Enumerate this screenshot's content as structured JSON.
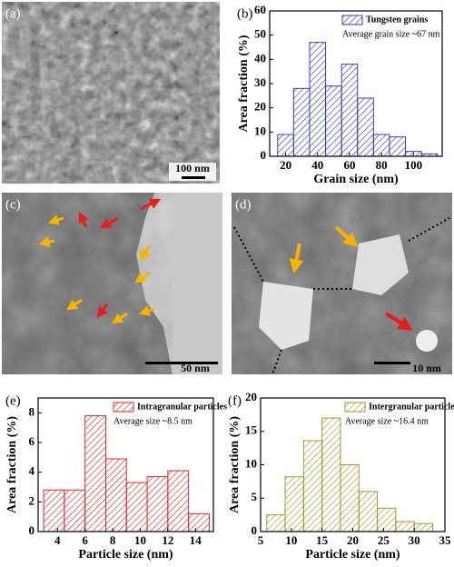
{
  "images": [
    {
      "label": "(a)",
      "scale_bar": "100 nm"
    },
    {
      "label": "(c)",
      "scale_bar": "50 nm"
    },
    {
      "label": "(d)",
      "scale_bar": "10 nm"
    }
  ],
  "chart_data": [
    {
      "type": "histogram",
      "label": "(b)",
      "xlabel": "Grain size (nm)",
      "ylabel": "Area fraction (%)",
      "annotation": "Average grain size ~67 nm",
      "bins": [
        15,
        25,
        35,
        45,
        55,
        65,
        75,
        85,
        95,
        105,
        115
      ],
      "series": [
        {
          "name": "Tungsten grains",
          "color": "#3a3acc",
          "values": [
            9,
            28,
            47,
            29,
            38,
            24,
            9,
            8,
            2,
            1
          ]
        }
      ],
      "xlim": [
        10,
        118
      ],
      "xticks": [
        20,
        40,
        60,
        80,
        100
      ],
      "ylim": [
        0,
        60
      ],
      "yticks": [
        0,
        10,
        20,
        30,
        40,
        50,
        60
      ]
    },
    {
      "type": "histogram",
      "label": "(e)",
      "xlabel": "Particle size (nm)",
      "ylabel": "Area fraction (%)",
      "annotation": "Average size ~8.5 nm",
      "bins": [
        3,
        4.5,
        6,
        7.5,
        9,
        10.5,
        12,
        13.5,
        15
      ],
      "series": [
        {
          "name": "Intragranular particles",
          "color": "#dd2a2a",
          "values": [
            2.8,
            2.8,
            7.8,
            4.9,
            3.3,
            3.7,
            4.1,
            1.2
          ]
        }
      ],
      "xlim": [
        2.6,
        15.3
      ],
      "xticks": [
        4,
        6,
        8,
        10,
        12,
        14
      ],
      "ylim": [
        0,
        9
      ],
      "yticks": [
        0,
        2,
        4,
        6,
        8
      ]
    },
    {
      "type": "histogram",
      "label": "(f)",
      "xlabel": "Particle size (nm)",
      "ylabel": "Area fraction (%)",
      "annotation": "Average size ~16.4 nm",
      "bins": [
        6,
        9,
        12,
        15,
        18,
        21,
        24,
        27,
        30,
        33
      ],
      "series": [
        {
          "name": "Intergranular particles",
          "color": "#9a9a30",
          "values": [
            2.5,
            8.2,
            13.6,
            17,
            10,
            6,
            3.5,
            1.5,
            1.2
          ]
        }
      ],
      "xlim": [
        5,
        35
      ],
      "xticks": [
        5,
        10,
        15,
        20,
        25,
        30,
        35
      ],
      "ylim": [
        0,
        20
      ],
      "yticks": [
        0,
        5,
        10,
        15,
        20
      ]
    }
  ]
}
